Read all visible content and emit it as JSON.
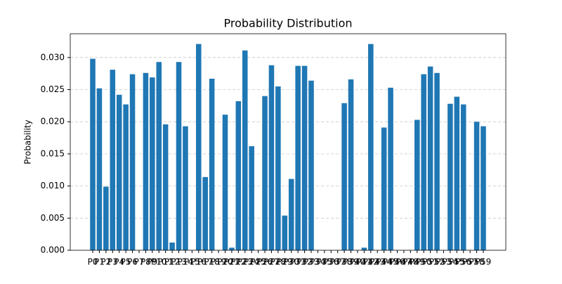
{
  "chart_data": {
    "type": "bar",
    "title": "Probability Distribution",
    "y_label": "Probability",
    "categories": [
      "P0",
      "P1",
      "P2",
      "P3",
      "P4",
      "P5",
      "P6",
      "P7",
      "P8",
      "P9",
      "P10",
      "P11",
      "P12",
      "P13",
      "P14",
      "P15",
      "P16",
      "P17",
      "P18",
      "P19",
      "P20",
      "P21",
      "P22",
      "P23",
      "P24",
      "P25",
      "P26",
      "P27",
      "P28",
      "P29",
      "P30",
      "P31",
      "P32",
      "P33",
      "P34",
      "P35",
      "P36",
      "P37",
      "P38",
      "P39",
      "P40",
      "P41",
      "P42",
      "P43",
      "P44",
      "P45",
      "P46",
      "P47",
      "P48",
      "P49",
      "P50",
      "P51",
      "P52",
      "P53",
      "P54",
      "P55",
      "P56",
      "P57",
      "P58",
      "P59"
    ],
    "values": [
      0.0298,
      0.0252,
      0.0099,
      0.0281,
      0.0242,
      0.0227,
      0.0274,
      0,
      0.0276,
      0.0269,
      0.0293,
      0.0196,
      0.0012,
      0.0293,
      0.0193,
      0,
      0.0321,
      0.0114,
      0.0267,
      0,
      0.0211,
      0.0004,
      0.0232,
      0.0311,
      0.0162,
      0,
      0.024,
      0.0288,
      0.0255,
      0.0054,
      0.0111,
      0.0287,
      0.0287,
      0.0264,
      0,
      0,
      0,
      0,
      0.0229,
      0.0266,
      0,
      0.0004,
      0.0321,
      0,
      0.0191,
      0.0253,
      0,
      0,
      0,
      0.0203,
      0.0274,
      0.0286,
      0.0276,
      0,
      0.0228,
      0.0239,
      0.0227,
      0,
      0.02,
      0.0193
    ],
    "color": "#1f77b4",
    "ylim": [
      0,
      0.0337
    ],
    "yticks": [
      {
        "value": 0,
        "label": "0.000"
      },
      {
        "value": 0.005,
        "label": "0.005"
      },
      {
        "value": 0.01,
        "label": "0.010"
      },
      {
        "value": 0.015,
        "label": "0.015"
      },
      {
        "value": 0.02,
        "label": "0.020"
      },
      {
        "value": 0.025,
        "label": "0.025"
      },
      {
        "value": 0.03,
        "label": "0.030"
      }
    ],
    "grid": true
  }
}
